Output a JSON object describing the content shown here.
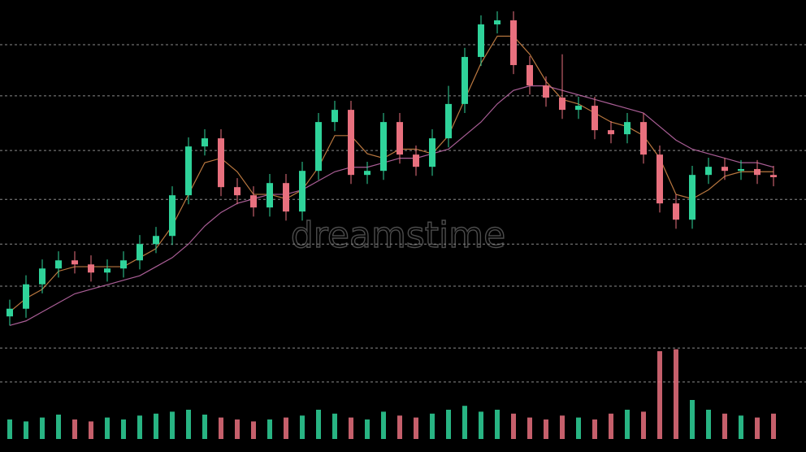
{
  "chart_data": {
    "type": "candlestick",
    "up_color": "#2fd39a",
    "down_color": "#e8707e",
    "ylim": [
      0,
      100
    ],
    "gridlines": [
      90.1,
      78.8,
      66.7,
      55.9,
      46.0,
      36.7,
      23.0,
      15.5
    ],
    "open": [
      30.0,
      31.7,
      37.1,
      40.6,
      42.4,
      41.5,
      39.7,
      40.6,
      42.4,
      46.0,
      47.8,
      56.8,
      67.6,
      69.4,
      58.6,
      56.8,
      54.1,
      59.5,
      53.2,
      62.2,
      73.0,
      75.7,
      61.3,
      62.2,
      73.0,
      65.8,
      63.1,
      69.4,
      77.0,
      87.4,
      94.6,
      95.5,
      85.6,
      81.1,
      78.4,
      75.7,
      76.6,
      71.2,
      70.3,
      73.0,
      65.8,
      55.0,
      51.4,
      61.3,
      63.1,
      62.2,
      62.6,
      61.3
    ],
    "high": [
      33.7,
      39.1,
      42.6,
      44.4,
      44.4,
      43.5,
      42.6,
      44.4,
      48.0,
      49.8,
      58.8,
      69.6,
      71.4,
      71.4,
      60.6,
      58.8,
      61.5,
      61.5,
      64.2,
      75.0,
      77.7,
      77.7,
      64.2,
      75.0,
      75.0,
      67.8,
      71.4,
      81.0,
      89.4,
      96.6,
      97.5,
      97.5,
      87.6,
      83.1,
      88.0,
      78.6,
      78.6,
      73.2,
      75.0,
      75.0,
      67.8,
      57.0,
      63.3,
      65.1,
      65.1,
      64.6,
      64.6,
      63.3
    ],
    "low": [
      28.0,
      29.7,
      35.1,
      38.6,
      39.5,
      37.7,
      37.7,
      38.6,
      40.4,
      44.0,
      45.8,
      54.8,
      65.6,
      56.6,
      54.8,
      52.1,
      52.1,
      51.2,
      51.2,
      60.2,
      71.0,
      59.3,
      59.3,
      60.2,
      63.8,
      61.1,
      61.1,
      67.4,
      75.0,
      85.4,
      92.6,
      83.6,
      79.1,
      76.4,
      73.7,
      73.7,
      69.2,
      68.3,
      68.3,
      63.8,
      53.0,
      49.4,
      49.4,
      59.3,
      60.2,
      60.2,
      59.3,
      58.8
    ],
    "close": [
      31.7,
      37.1,
      40.6,
      42.4,
      41.5,
      39.7,
      40.6,
      42.4,
      46.0,
      47.8,
      56.8,
      67.6,
      69.4,
      58.6,
      56.8,
      54.1,
      59.5,
      53.2,
      62.2,
      73.0,
      75.7,
      61.3,
      62.2,
      73.0,
      65.8,
      63.1,
      69.4,
      77.0,
      87.4,
      94.6,
      95.5,
      85.6,
      81.1,
      78.4,
      75.7,
      76.6,
      71.2,
      70.3,
      73.0,
      65.8,
      55.0,
      51.4,
      61.3,
      63.1,
      62.2,
      62.6,
      61.3,
      60.8
    ],
    "series": [
      {
        "color": "#d98c4a",
        "values": [
          31,
          34,
          36,
          40,
          41,
          41,
          41,
          41,
          43,
          45,
          50,
          57,
          64,
          65,
          62,
          57,
          57,
          56,
          58,
          63,
          70,
          70,
          66,
          65,
          67,
          67,
          66,
          70,
          78,
          86,
          92,
          92,
          88,
          82,
          78,
          77,
          75,
          73,
          72,
          70,
          65,
          57,
          56,
          58,
          61,
          62,
          62,
          62
        ]
      },
      {
        "color": "#c86fb0",
        "values": [
          28,
          29,
          31,
          33,
          35,
          36,
          37,
          38,
          39,
          41,
          43,
          46,
          50,
          53,
          55,
          56,
          57,
          57,
          58,
          60,
          62,
          63,
          63,
          64,
          65,
          65,
          66,
          67,
          70,
          73,
          77,
          80,
          81,
          81,
          80,
          79,
          78,
          77,
          76,
          75,
          72,
          69,
          67,
          66,
          65,
          64,
          64,
          63
        ]
      }
    ],
    "volume": [
      20,
      18,
      22,
      25,
      20,
      18,
      22,
      20,
      24,
      26,
      28,
      30,
      25,
      22,
      20,
      18,
      20,
      22,
      24,
      30,
      26,
      22,
      20,
      28,
      24,
      22,
      26,
      30,
      34,
      28,
      30,
      26,
      22,
      20,
      24,
      22,
      20,
      26,
      30,
      28,
      90,
      92,
      40,
      30,
      26,
      24,
      22,
      26
    ],
    "volume_lim": [
      0,
      100
    ],
    "watermark": "dreamstime"
  }
}
